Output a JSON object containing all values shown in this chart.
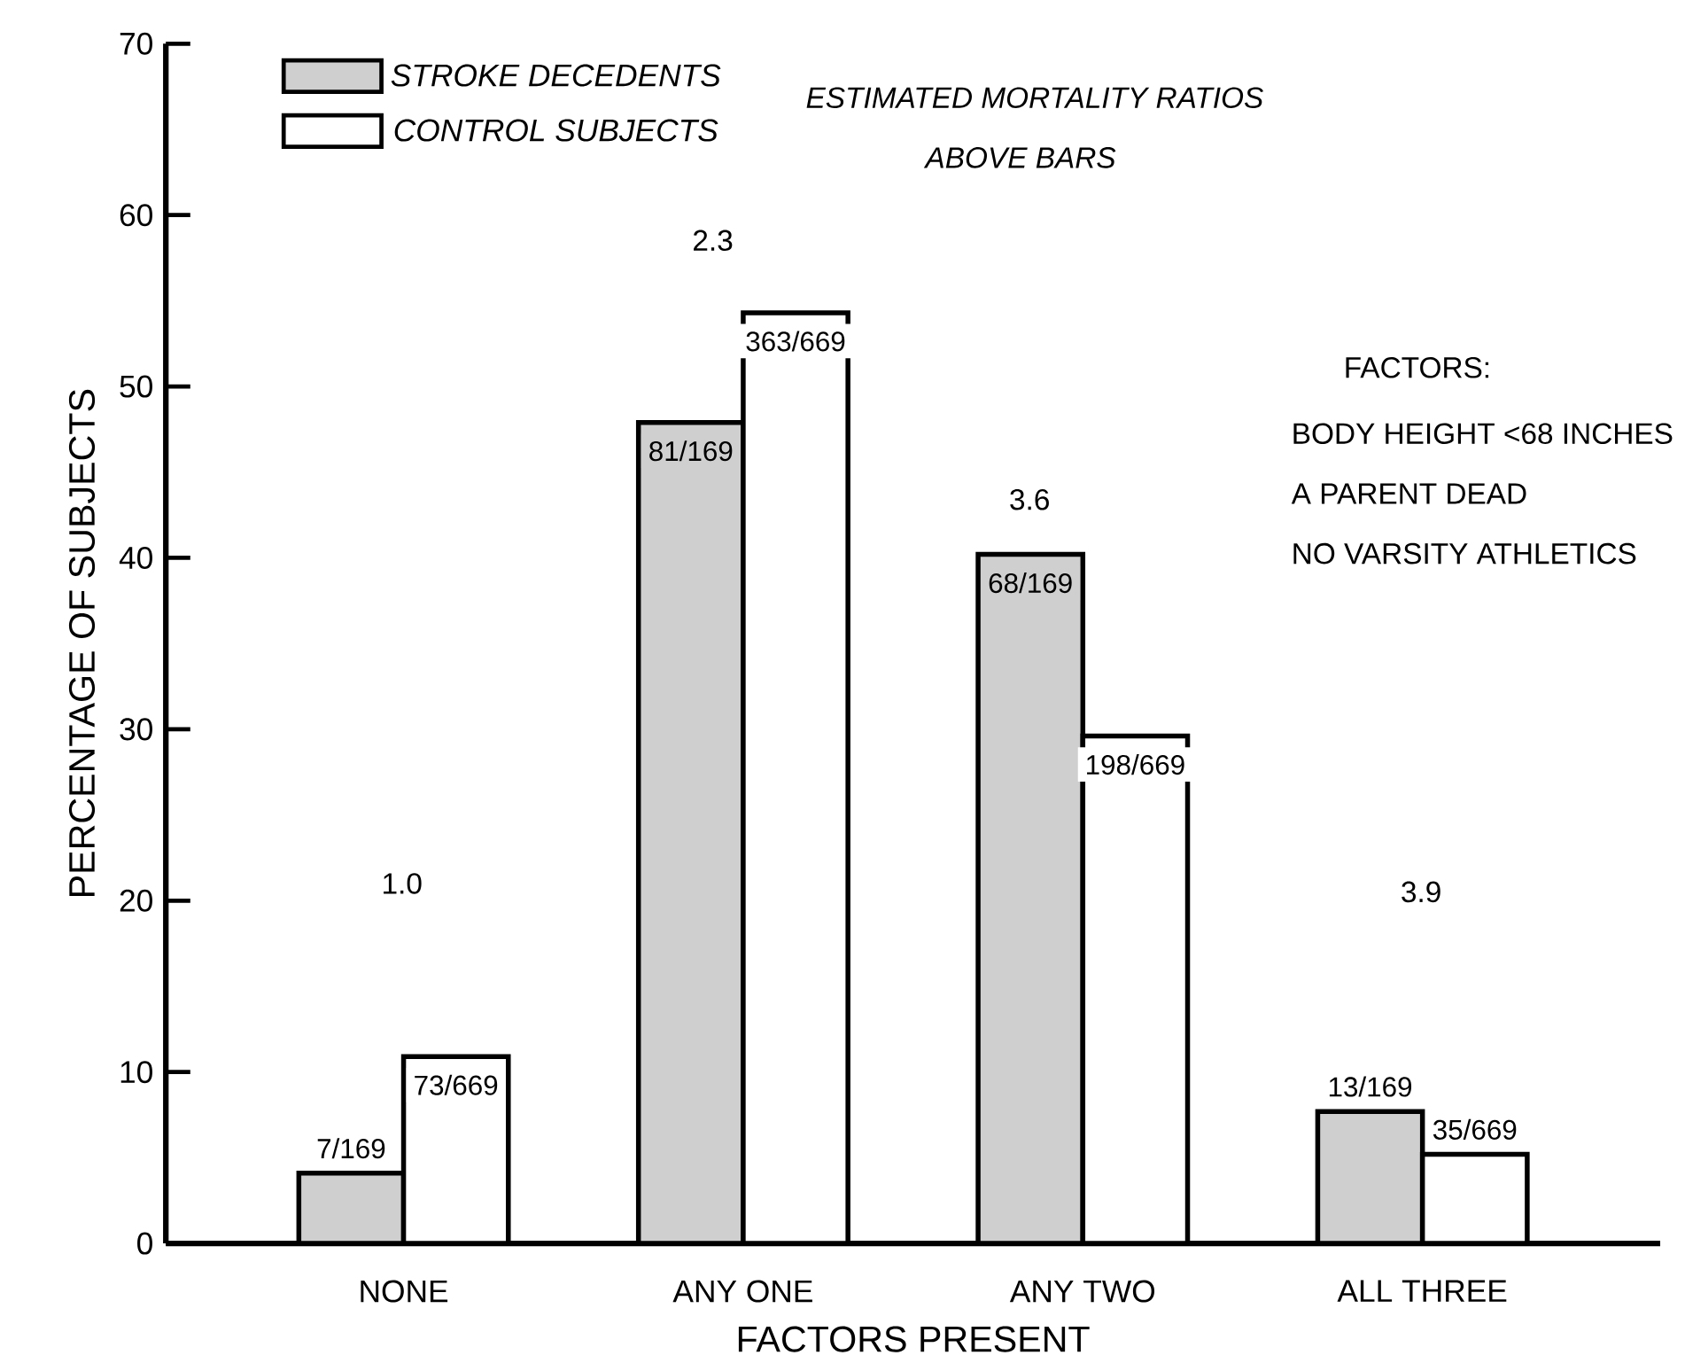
{
  "chart_data": {
    "type": "bar",
    "xlabel": "FACTORS PRESENT",
    "ylabel": "PERCENTAGE OF SUBJECTS",
    "categories": [
      "NONE",
      "ANY ONE",
      "ANY TWO",
      "ALL THREE"
    ],
    "series": [
      {
        "name": "STROKE DECEDENTS",
        "color": "#cfcfcf",
        "values": [
          4.1,
          47.9,
          40.2,
          7.7
        ],
        "value_labels": [
          "7/169",
          "81/169",
          "68/169",
          "13/169"
        ]
      },
      {
        "name": "CONTROL SUBJECTS",
        "color": "#ffffff",
        "values": [
          10.9,
          54.3,
          29.6,
          5.2
        ],
        "value_labels": [
          "73/669",
          "363/669",
          "198/669",
          "35/669"
        ]
      }
    ],
    "ylim": [
      0,
      70
    ],
    "yticks": [
      0,
      10,
      20,
      30,
      40,
      50,
      60,
      70
    ],
    "legend": "top left",
    "annotations": [
      "ESTIMATED MORTALITY RATIOS",
      "ABOVE BARS",
      "FACTORS:",
      "BODY HEIGHT <68 INCHES",
      "A PARENT DEAD",
      "NO VARSITY ATHLETICS",
      "1.0",
      "2.3",
      "3.6",
      "3.9"
    ]
  }
}
